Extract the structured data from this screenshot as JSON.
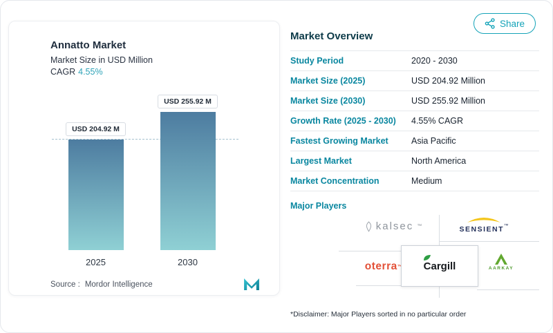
{
  "share": {
    "label": "Share"
  },
  "chart": {
    "title": "Annatto Market",
    "subtitle": "Market Size in USD Million",
    "cagr_label": "CAGR",
    "cagr_value": "4.55%",
    "source_label": "Source :",
    "source_name": "Mordor Intelligence"
  },
  "chart_data": {
    "type": "bar",
    "title": "Annatto Market",
    "subtitle": "Market Size in USD Million",
    "unit": "USD Million",
    "categories": [
      "2025",
      "2030"
    ],
    "values": [
      204.92,
      255.92
    ],
    "bar_labels": [
      "USD 204.92 M",
      "USD 255.92 M"
    ],
    "reference_line": 204.92,
    "ylim": [
      0,
      255.92
    ],
    "cagr": "4.55%",
    "bar_gradient_top": "#4d7ca0",
    "bar_gradient_bottom": "#8fd0d4",
    "legend": false,
    "grid": false
  },
  "overview": {
    "title": "Market Overview",
    "rows": [
      {
        "label": "Study Period",
        "value": "2020 - 2030"
      },
      {
        "label": "Market Size (2025)",
        "value": "USD 204.92 Million"
      },
      {
        "label": "Market Size (2030)",
        "value": "USD 255.92 Million"
      },
      {
        "label": "Growth Rate (2025 - 2030)",
        "value": "4.55% CAGR"
      },
      {
        "label": "Fastest Growing Market",
        "value": "Asia Pacific"
      },
      {
        "label": "Largest Market",
        "value": "North America"
      },
      {
        "label": "Market Concentration",
        "value": "Medium"
      }
    ],
    "major_players_label": "Major Players",
    "players": [
      {
        "name": "kalsec",
        "mark": "™"
      },
      {
        "name": "SENSIENT",
        "mark": "™"
      },
      {
        "name": "oterra",
        "mark": "™"
      },
      {
        "name": "Cargill",
        "mark": ""
      },
      {
        "name": "AARKAY",
        "mark": ""
      }
    ],
    "disclaimer": "*Disclaimer: Major Players sorted in no particular order"
  },
  "colors": {
    "accent_teal": "#14a3b8",
    "label_teal": "#0a87a0",
    "heading_navy": "#0d3b49",
    "value_dark": "#18222e",
    "dashed_line": "#a3c0ce"
  }
}
